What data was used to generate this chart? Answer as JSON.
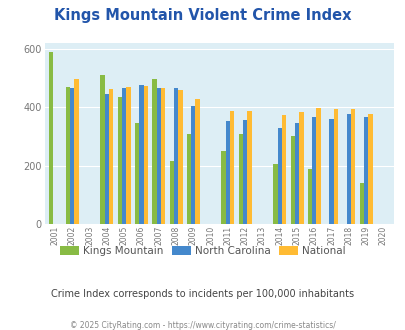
{
  "title": "Kings Mountain Violent Crime Index",
  "title_color": "#2255aa",
  "subtitle": "Crime Index corresponds to incidents per 100,000 inhabitants",
  "subtitle_color": "#444444",
  "footer": "© 2025 CityRating.com - https://www.cityrating.com/crime-statistics/",
  "footer_color": "#888888",
  "years": [
    2001,
    2002,
    2003,
    2004,
    2005,
    2006,
    2007,
    2008,
    2009,
    2010,
    2011,
    2012,
    2013,
    2014,
    2015,
    2016,
    2017,
    2018,
    2019,
    2020
  ],
  "kings_mountain": [
    590,
    470,
    null,
    510,
    435,
    345,
    495,
    218,
    308,
    null,
    252,
    310,
    null,
    207,
    302,
    188,
    null,
    null,
    140,
    null
  ],
  "north_carolina": [
    null,
    467,
    null,
    447,
    465,
    475,
    465,
    465,
    404,
    null,
    352,
    355,
    null,
    330,
    347,
    368,
    360,
    378,
    368,
    null
  ],
  "national": [
    null,
    498,
    null,
    463,
    469,
    474,
    466,
    458,
    428,
    null,
    387,
    387,
    null,
    374,
    383,
    397,
    394,
    394,
    378,
    null
  ],
  "km_color": "#88bb44",
  "nc_color": "#4488cc",
  "nat_color": "#ffbb33",
  "bg_color": "#ddeef5",
  "ylim": [
    0,
    620
  ],
  "yticks": [
    0,
    200,
    400,
    600
  ],
  "bar_width": 0.25,
  "legend_labels": [
    "Kings Mountain",
    "North Carolina",
    "National"
  ],
  "figsize": [
    4.06,
    3.3
  ],
  "dpi": 100
}
